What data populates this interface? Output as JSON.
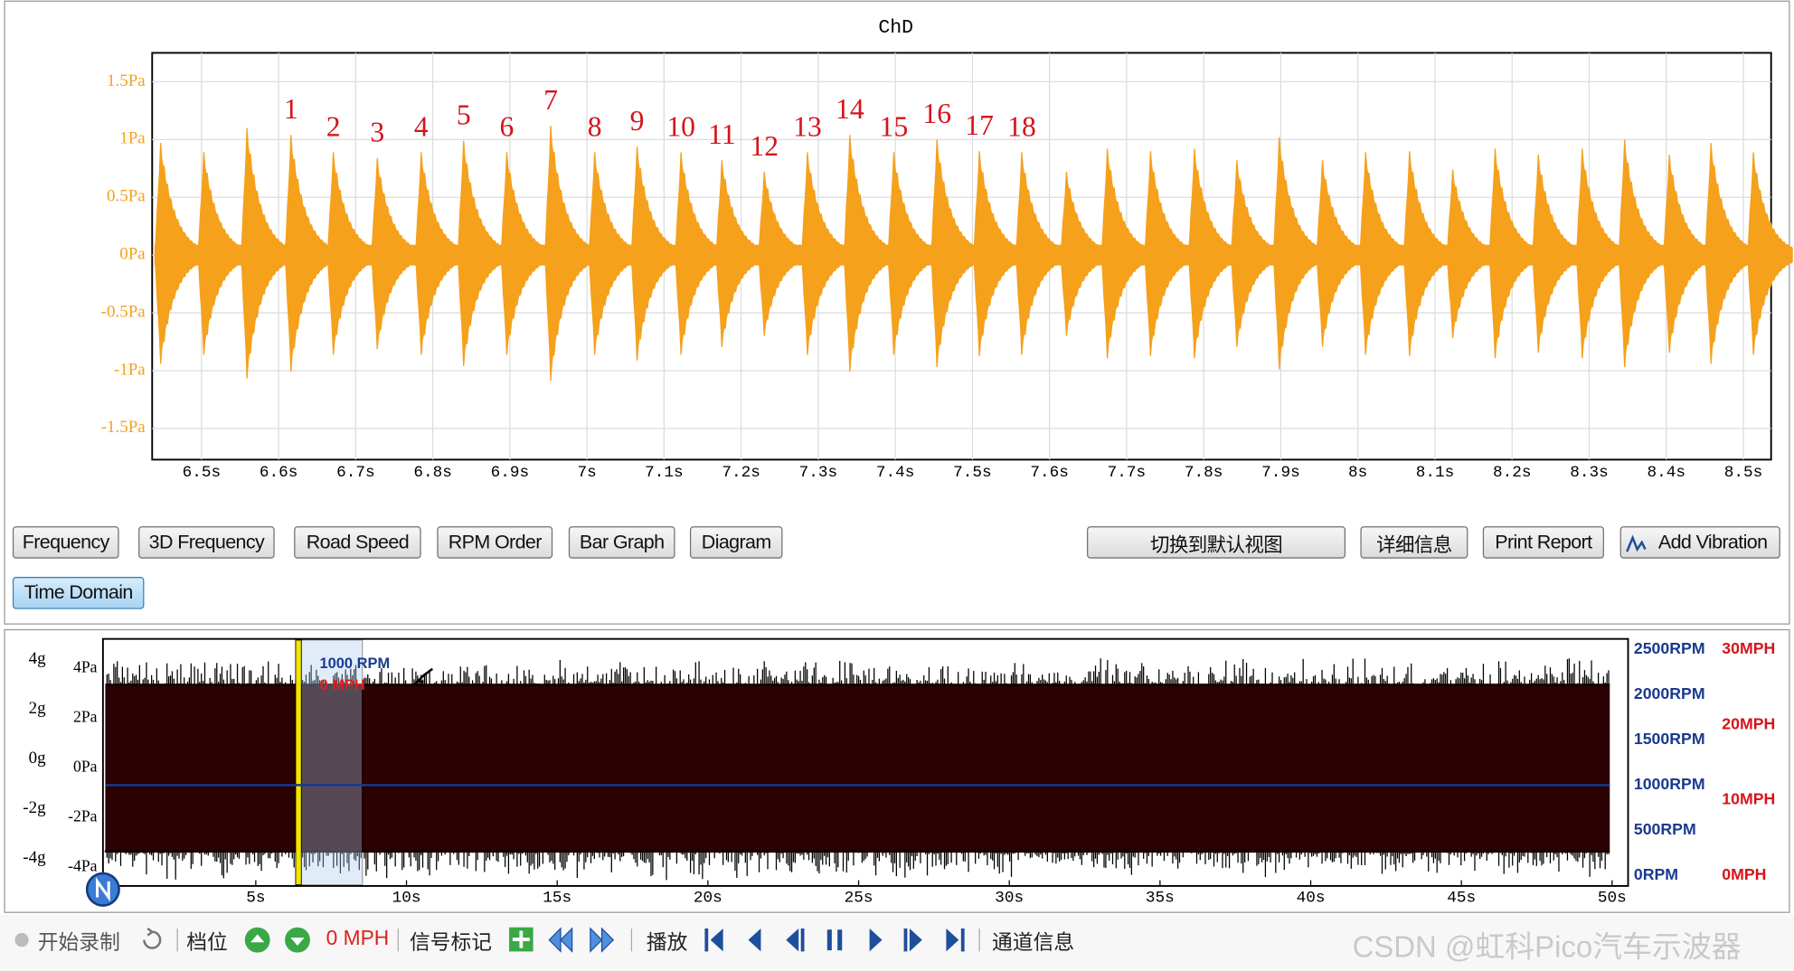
{
  "chart_data": [
    {
      "type": "bursts",
      "title": "ChD",
      "color": "#f5a11c",
      "x": [
        6.447,
        6.503,
        6.559,
        6.616,
        6.671,
        6.728,
        6.785,
        6.84,
        6.896,
        6.953,
        7.01,
        7.065,
        7.122,
        7.175,
        7.23,
        7.286,
        7.341,
        7.398,
        7.454,
        7.509,
        7.564,
        7.622,
        7.675,
        7.731,
        7.788,
        7.843,
        7.898,
        7.954,
        8.01,
        8.067,
        8.123,
        8.178,
        8.234,
        8.291,
        8.346,
        8.404,
        8.458,
        8.513
      ],
      "values": [
        0.97,
        0.89,
        1.1,
        1.04,
        0.89,
        0.84,
        0.89,
        0.99,
        0.89,
        1.12,
        0.89,
        0.94,
        0.89,
        0.82,
        0.72,
        0.89,
        1.04,
        0.89,
        1.0,
        0.9,
        0.89,
        0.72,
        0.92,
        0.9,
        0.92,
        0.82,
        1.02,
        0.82,
        0.89,
        0.9,
        0.74,
        0.92,
        0.87,
        0.92,
        1.0,
        0.87,
        0.97,
        0.89
      ],
      "annotations": [
        "1",
        "2",
        "3",
        "4",
        "5",
        "6",
        "7",
        "8",
        "9",
        "10",
        "11",
        "12",
        "13",
        "14",
        "15",
        "16",
        "17",
        "18"
      ],
      "xlim": [
        6.436,
        8.536
      ],
      "ylim": [
        -1.77,
        1.75
      ],
      "grid": true,
      "xticks": [
        {
          "value": 6.5,
          "label": "6.5s"
        },
        {
          "value": 6.6,
          "label": "6.6s"
        },
        {
          "value": 6.7,
          "label": "6.7s"
        },
        {
          "value": 6.8,
          "label": "6.8s"
        },
        {
          "value": 6.9,
          "label": "6.9s"
        },
        {
          "value": 7.0,
          "label": "7s"
        },
        {
          "value": 7.1,
          "label": "7.1s"
        },
        {
          "value": 7.2,
          "label": "7.2s"
        },
        {
          "value": 7.3,
          "label": "7.3s"
        },
        {
          "value": 7.4,
          "label": "7.4s"
        },
        {
          "value": 7.5,
          "label": "7.5s"
        },
        {
          "value": 7.6,
          "label": "7.6s"
        },
        {
          "value": 7.7,
          "label": "7.7s"
        },
        {
          "value": 7.8,
          "label": "7.8s"
        },
        {
          "value": 7.9,
          "label": "7.9s"
        },
        {
          "value": 8.0,
          "label": "8s"
        },
        {
          "value": 8.1,
          "label": "8.1s"
        },
        {
          "value": 8.2,
          "label": "8.2s"
        },
        {
          "value": 8.3,
          "label": "8.3s"
        },
        {
          "value": 8.4,
          "label": "8.4s"
        },
        {
          "value": 8.5,
          "label": "8.5s"
        }
      ],
      "yticks": [
        {
          "value": 1.5,
          "label": "1.5Pa"
        },
        {
          "value": 1,
          "label": "1Pa"
        },
        {
          "value": 0.5,
          "label": "0.5Pa"
        },
        {
          "value": 0,
          "label": "0Pa"
        },
        {
          "value": -0.5,
          "label": "-0.5Pa"
        },
        {
          "value": -1,
          "label": "-1Pa"
        },
        {
          "value": -1.5,
          "label": "-1.5Pa"
        }
      ]
    },
    {
      "type": "band",
      "color": "#2a0202",
      "band": {
        "upper": 3.4,
        "lower": -3.4
      },
      "rpm": {
        "value": 1000,
        "color": "#1a3a8f"
      },
      "annotations": {
        "rpm": "1000 RPM",
        "mph": "0 MPH"
      },
      "xlim": [
        -0.07,
        50.53
      ],
      "ylim": [
        -4.74,
        5.2
      ],
      "y2lim": [
        -114,
        2614
      ],
      "mph_lim": [
        -1.4,
        31.4
      ],
      "xticks": [
        {
          "value": 5,
          "label": "5s"
        },
        {
          "value": 10,
          "label": "10s"
        },
        {
          "value": 15,
          "label": "15s"
        },
        {
          "value": 20,
          "label": "20s"
        },
        {
          "value": 25,
          "label": "25s"
        },
        {
          "value": 30,
          "label": "30s"
        },
        {
          "value": 35,
          "label": "35s"
        },
        {
          "value": 40,
          "label": "40s"
        },
        {
          "value": 45,
          "label": "45s"
        },
        {
          "value": 50,
          "label": "50s"
        }
      ],
      "yticks": [
        {
          "value": 4,
          "label": "4Pa"
        },
        {
          "value": 2,
          "label": "2Pa"
        },
        {
          "value": 0,
          "label": "0Pa"
        },
        {
          "value": -2,
          "label": "-2Pa"
        },
        {
          "value": -4,
          "label": "-4Pa"
        }
      ],
      "g_ticks": [
        {
          "value": 4,
          "label": "4g"
        },
        {
          "value": 2,
          "label": "2g"
        },
        {
          "value": 0,
          "label": "0g"
        },
        {
          "value": -2,
          "label": "-2g"
        },
        {
          "value": -4,
          "label": "-4g"
        }
      ],
      "y2ticks": [
        {
          "value": 2500,
          "label": "2500RPM"
        },
        {
          "value": 2000,
          "label": "2000RPM"
        },
        {
          "value": 1500,
          "label": "1500RPM"
        },
        {
          "value": 1000,
          "label": "1000RPM"
        },
        {
          "value": 500,
          "label": "500RPM"
        },
        {
          "value": 0,
          "label": "0RPM"
        }
      ],
      "mph_ticks": [
        {
          "value": 30,
          "label": "30MPH"
        },
        {
          "value": 20,
          "label": "20MPH"
        },
        {
          "value": 10,
          "label": "10MPH"
        },
        {
          "value": 0,
          "label": "0MPH"
        }
      ]
    }
  ],
  "buttons": [
    "Frequency",
    "3D Frequency",
    "Road Speed",
    "RPM Order",
    "Bar Graph",
    "Diagram",
    "切换到默认视图",
    "详细信息",
    "Print Report",
    "Add Vibration",
    "Time Domain"
  ],
  "toolbar": {
    "record": "开始录制",
    "gear": "档位",
    "speed": "0 MPH",
    "marker": "信号标记",
    "play": "播放",
    "channel": "通道信息"
  },
  "watermark": "CSDN @虹科Pico汽车示波器"
}
